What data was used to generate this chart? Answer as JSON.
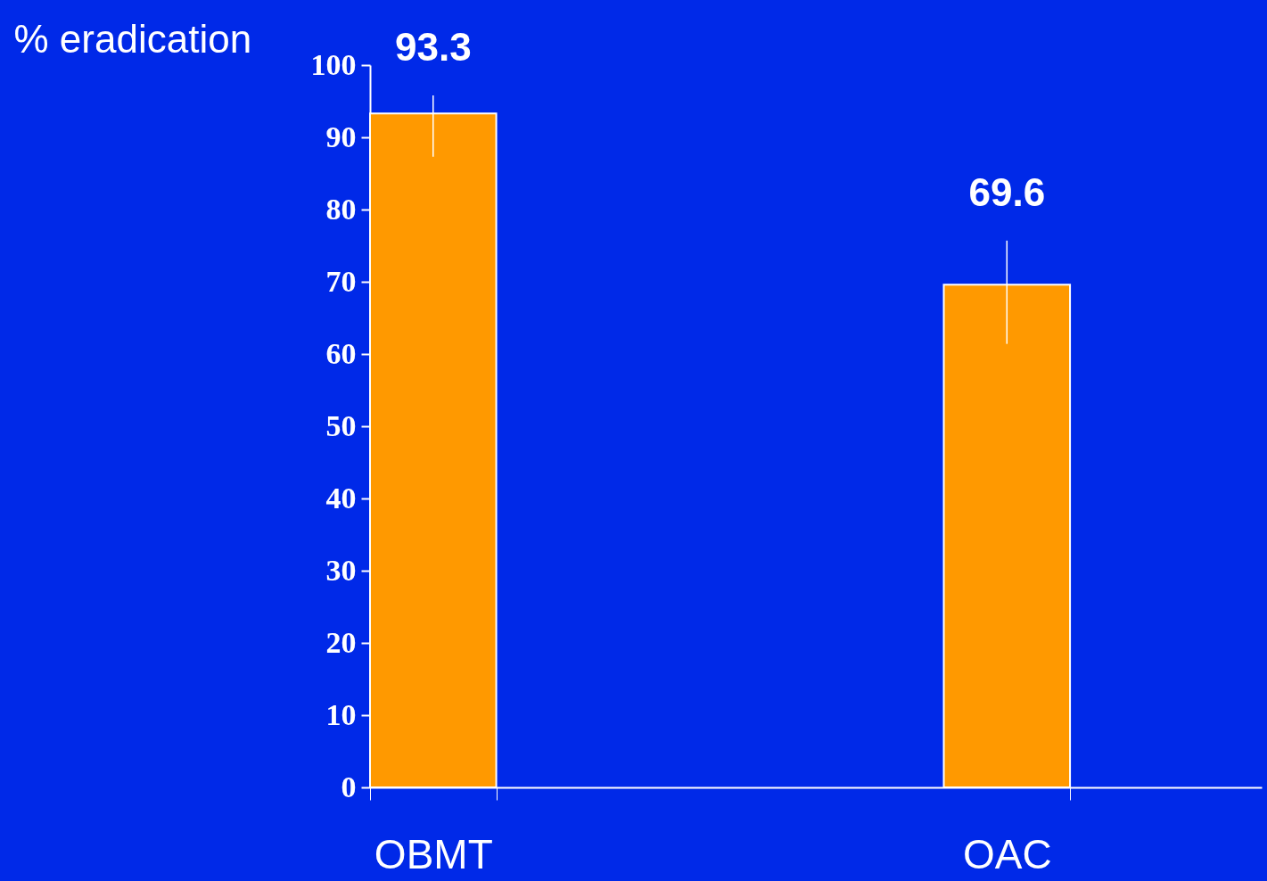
{
  "chart_data": {
    "type": "bar",
    "ylabel": "% eradication",
    "categories": [
      "OBMT",
      "OAC"
    ],
    "values": [
      93.3,
      69.6
    ],
    "errors": [
      [
        87.3,
        95.8
      ],
      [
        61.4,
        75.7
      ]
    ],
    "color": "#ff9900",
    "data_labels": true,
    "ylim": [
      0,
      100
    ],
    "yticks": [
      0,
      10,
      20,
      30,
      40,
      50,
      60,
      70,
      80,
      90,
      100
    ],
    "grid": false
  }
}
